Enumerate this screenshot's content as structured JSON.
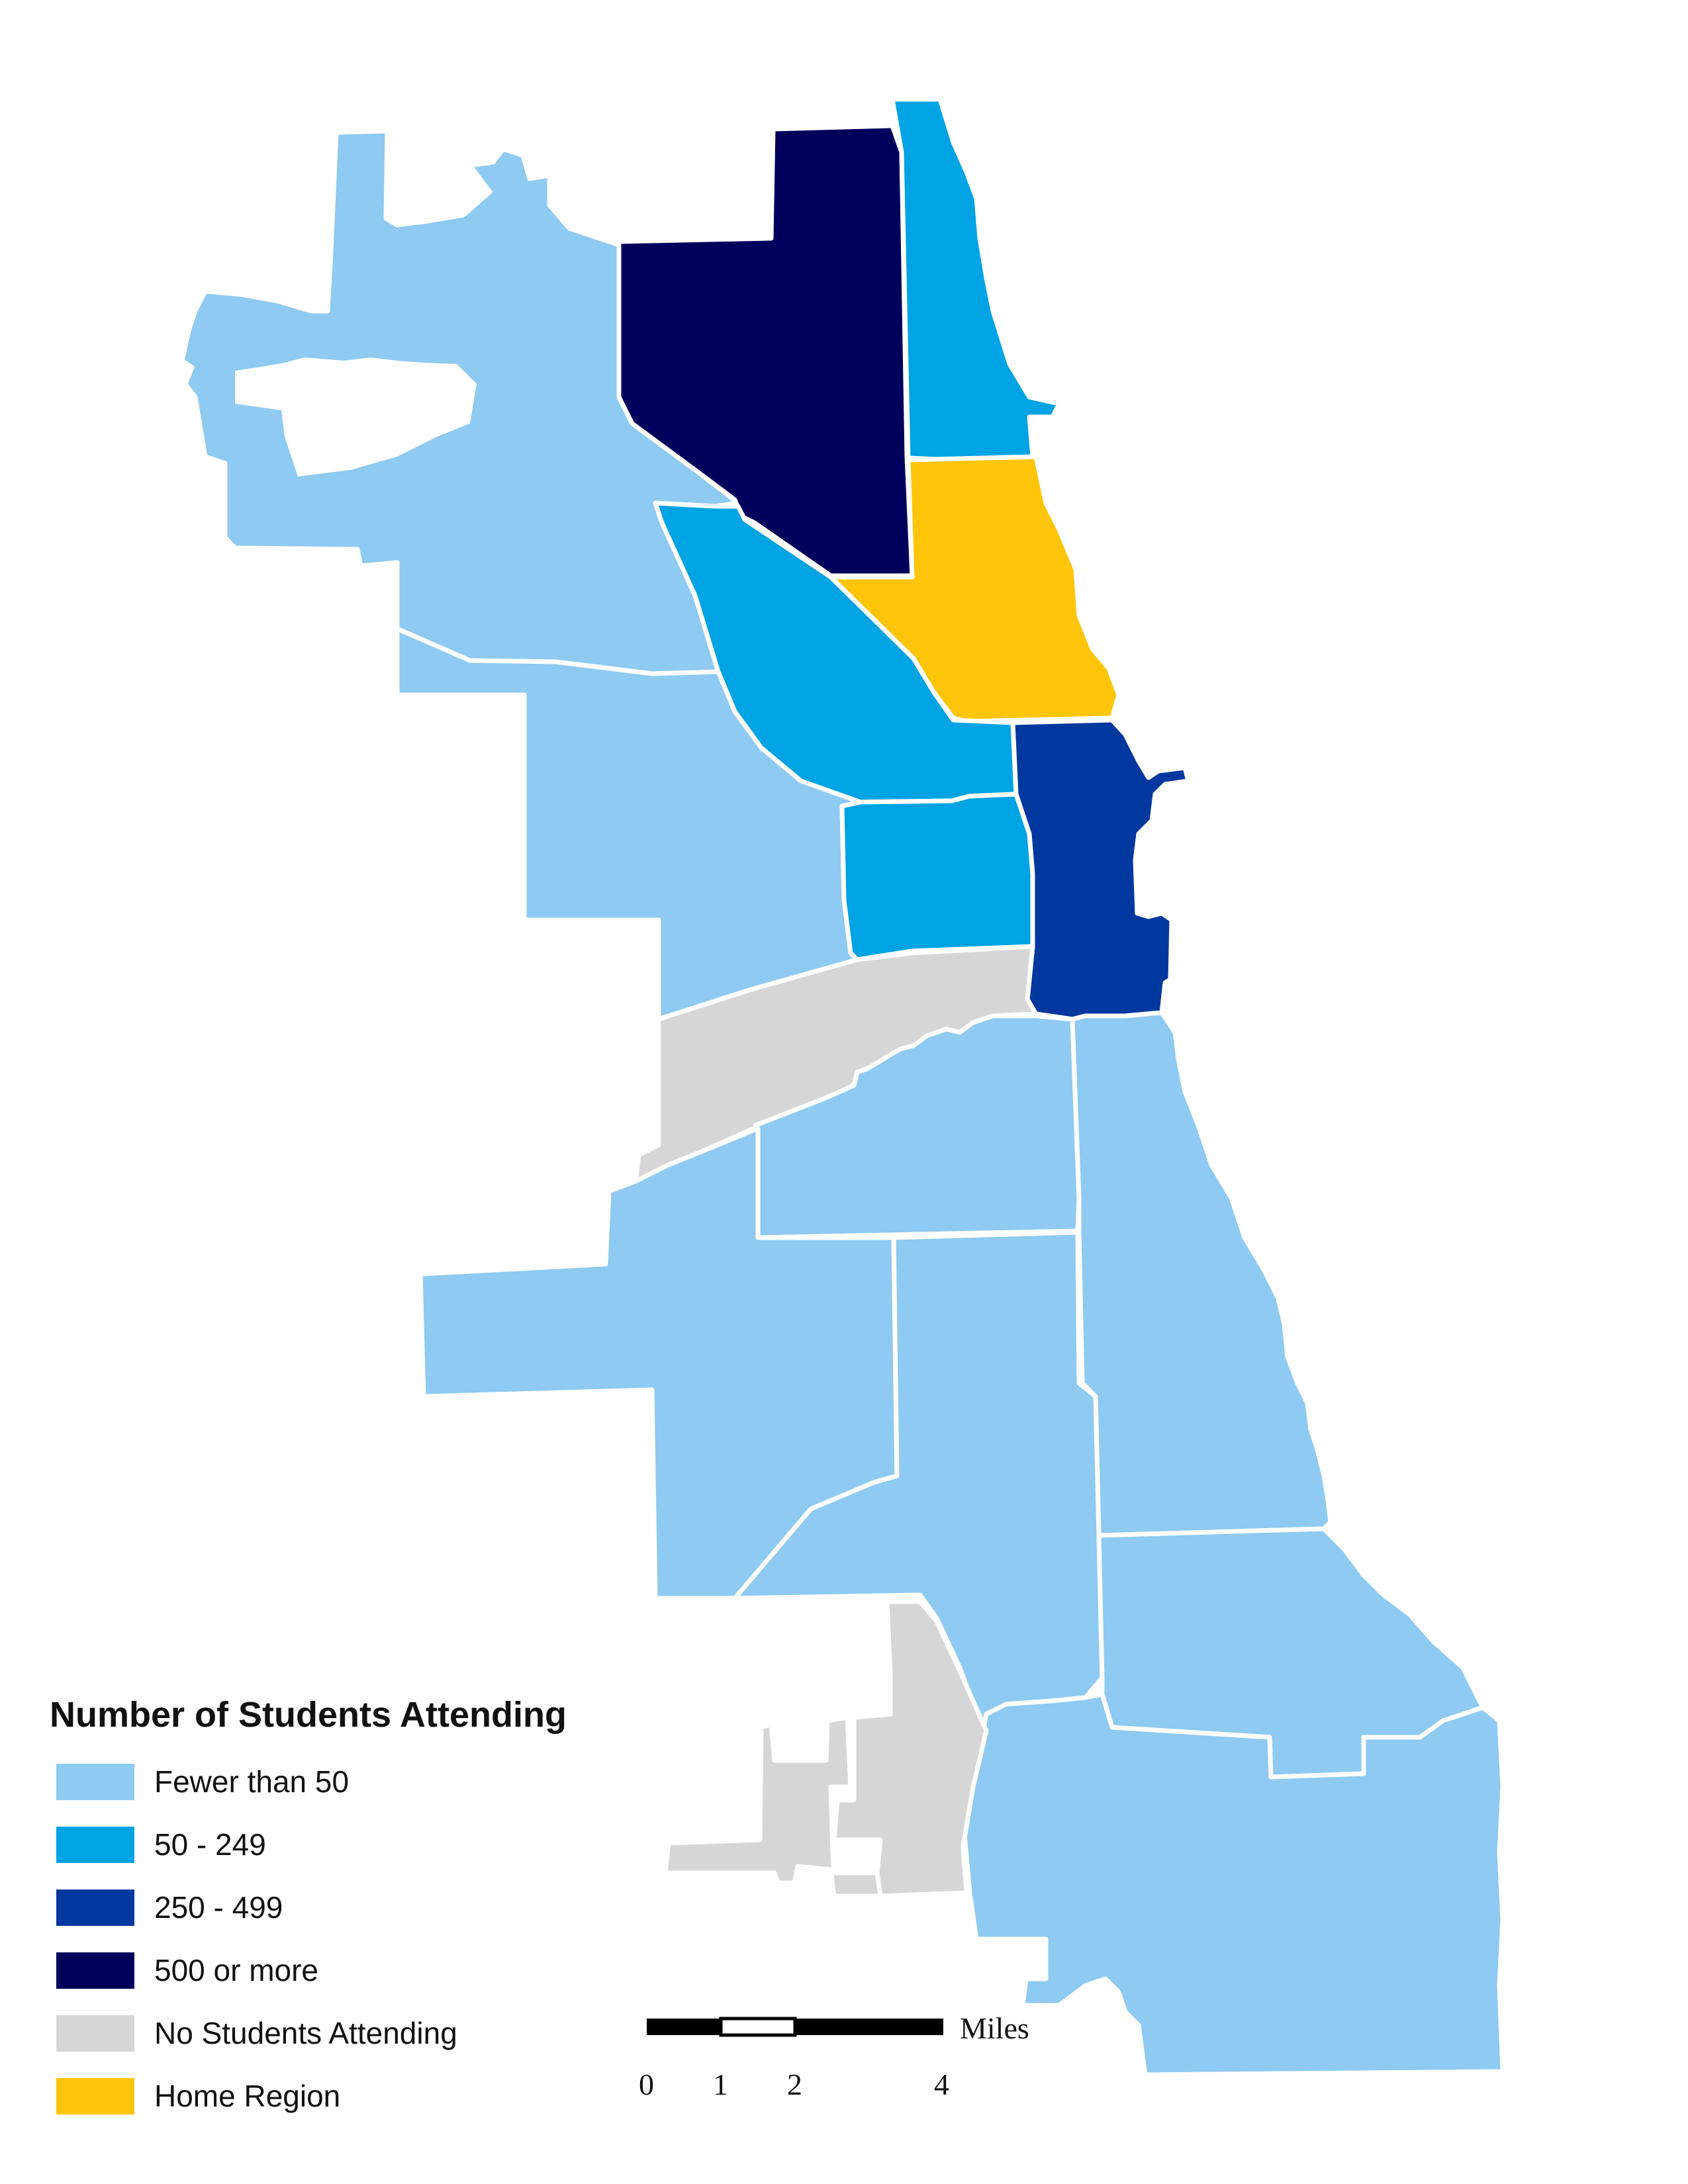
{
  "legend": {
    "title": "Number of Students Attending",
    "items": [
      {
        "label": "Fewer than 50",
        "color": "#8ECAF1"
      },
      {
        "label": "50 - 249",
        "color": "#00A3E3"
      },
      {
        "label": "250 - 499",
        "color": "#0038A0"
      },
      {
        "label": "500 or more",
        "color": "#00005C"
      },
      {
        "label": "No Students Attending",
        "color": "#D6D6D6"
      },
      {
        "label": "Home Region",
        "color": "#FFC50A"
      }
    ]
  },
  "scale_bar": {
    "unit": "Miles",
    "ticks": [
      "0",
      "1",
      "2",
      "4"
    ]
  }
}
